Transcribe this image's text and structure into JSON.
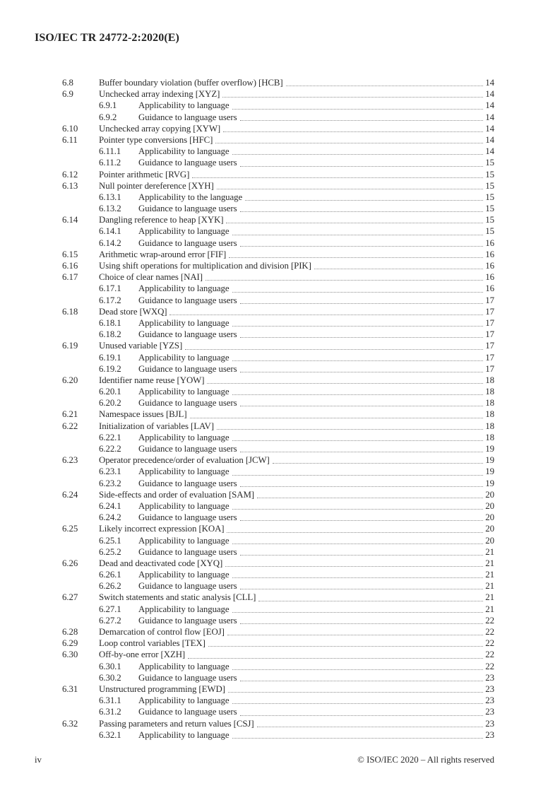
{
  "header": {
    "doc_id": "ISO/IEC TR 24772-2:2020(E)"
  },
  "toc": {
    "entries": [
      {
        "num": "6.8",
        "title": "Buffer boundary violation (buffer overflow) [HCB]",
        "page": "14",
        "level": 2
      },
      {
        "num": "6.9",
        "title": "Unchecked array indexing [XYZ]",
        "page": "14",
        "level": 2
      },
      {
        "num": "6.9.1",
        "title": "Applicability to language",
        "page": "14",
        "level": 3
      },
      {
        "num": "6.9.2",
        "title": "Guidance to language users",
        "page": "14",
        "level": 3
      },
      {
        "num": "6.10",
        "title": "Unchecked array copying [XYW]",
        "page": "14",
        "level": 2
      },
      {
        "num": "6.11",
        "title": "Pointer type conversions [HFC]",
        "page": "14",
        "level": 2
      },
      {
        "num": "6.11.1",
        "title": "Applicability to language",
        "page": "14",
        "level": 3
      },
      {
        "num": "6.11.2",
        "title": "Guidance to language users",
        "page": "15",
        "level": 3
      },
      {
        "num": "6.12",
        "title": "Pointer arithmetic [RVG]",
        "page": "15",
        "level": 2
      },
      {
        "num": "6.13",
        "title": "Null pointer dereference [XYH]",
        "page": "15",
        "level": 2
      },
      {
        "num": "6.13.1",
        "title": "Applicability to the language",
        "page": "15",
        "level": 3
      },
      {
        "num": "6.13.2",
        "title": "Guidance to language users",
        "page": "15",
        "level": 3
      },
      {
        "num": "6.14",
        "title": "Dangling reference to heap [XYK]",
        "page": "15",
        "level": 2
      },
      {
        "num": "6.14.1",
        "title": "Applicability to language",
        "page": "15",
        "level": 3
      },
      {
        "num": "6.14.2",
        "title": "Guidance to language users",
        "page": "16",
        "level": 3
      },
      {
        "num": "6.15",
        "title": "Arithmetic wrap-around error [FIF]",
        "page": "16",
        "level": 2
      },
      {
        "num": "6.16",
        "title": "Using shift operations for multiplication and division [PIK]",
        "page": "16",
        "level": 2
      },
      {
        "num": "6.17",
        "title": "Choice of clear names [NAI]",
        "page": "16",
        "level": 2
      },
      {
        "num": "6.17.1",
        "title": "Applicability to language",
        "page": "16",
        "level": 3
      },
      {
        "num": "6.17.2",
        "title": "Guidance to language users",
        "page": "17",
        "level": 3
      },
      {
        "num": "6.18",
        "title": "Dead store [WXQ]",
        "page": "17",
        "level": 2
      },
      {
        "num": "6.18.1",
        "title": "Applicability to language",
        "page": "17",
        "level": 3
      },
      {
        "num": "6.18.2",
        "title": "Guidance to language users",
        "page": "17",
        "level": 3
      },
      {
        "num": "6.19",
        "title": "Unused variable [YZS]",
        "page": "17",
        "level": 2
      },
      {
        "num": "6.19.1",
        "title": "Applicability to language",
        "page": "17",
        "level": 3
      },
      {
        "num": "6.19.2",
        "title": "Guidance to language users",
        "page": "17",
        "level": 3
      },
      {
        "num": "6.20",
        "title": "Identifier name reuse [YOW]",
        "page": "18",
        "level": 2
      },
      {
        "num": "6.20.1",
        "title": "Applicability to language",
        "page": "18",
        "level": 3
      },
      {
        "num": "6.20.2",
        "title": "Guidance to language users",
        "page": "18",
        "level": 3
      },
      {
        "num": "6.21",
        "title": "Namespace issues [BJL]",
        "page": "18",
        "level": 2
      },
      {
        "num": "6.22",
        "title": "Initialization of variables [LAV]",
        "page": "18",
        "level": 2
      },
      {
        "num": "6.22.1",
        "title": "Applicability to language",
        "page": "18",
        "level": 3
      },
      {
        "num": "6.22.2",
        "title": "Guidance to language users",
        "page": "19",
        "level": 3
      },
      {
        "num": "6.23",
        "title": "Operator precedence/order of evaluation [JCW]",
        "page": "19",
        "level": 2
      },
      {
        "num": "6.23.1",
        "title": "Applicability to language",
        "page": "19",
        "level": 3
      },
      {
        "num": "6.23.2",
        "title": "Guidance to language users",
        "page": "19",
        "level": 3
      },
      {
        "num": "6.24",
        "title": "Side-effects and order of evaluation [SAM]",
        "page": "20",
        "level": 2
      },
      {
        "num": "6.24.1",
        "title": "Applicability to language",
        "page": "20",
        "level": 3
      },
      {
        "num": "6.24.2",
        "title": "Guidance to language users",
        "page": "20",
        "level": 3
      },
      {
        "num": "6.25",
        "title": "Likely incorrect expression [KOA]",
        "page": "20",
        "level": 2
      },
      {
        "num": "6.25.1",
        "title": "Applicability to language",
        "page": "20",
        "level": 3
      },
      {
        "num": "6.25.2",
        "title": "Guidance to language users",
        "page": "21",
        "level": 3
      },
      {
        "num": "6.26",
        "title": "Dead and deactivated code [XYQ]",
        "page": "21",
        "level": 2
      },
      {
        "num": "6.26.1",
        "title": "Applicability to language",
        "page": "21",
        "level": 3
      },
      {
        "num": "6.26.2",
        "title": "Guidance to language users",
        "page": "21",
        "level": 3
      },
      {
        "num": "6.27",
        "title": "Switch statements and static analysis [CLL]",
        "page": "21",
        "level": 2
      },
      {
        "num": "6.27.1",
        "title": "Applicability to language",
        "page": "21",
        "level": 3
      },
      {
        "num": "6.27.2",
        "title": "Guidance to language users",
        "page": "22",
        "level": 3
      },
      {
        "num": "6.28",
        "title": "Demarcation of control flow [EOJ]",
        "page": "22",
        "level": 2
      },
      {
        "num": "6.29",
        "title": "Loop control variables [TEX]",
        "page": "22",
        "level": 2
      },
      {
        "num": "6.30",
        "title": "Off-by-one error [XZH]",
        "page": "22",
        "level": 2
      },
      {
        "num": "6.30.1",
        "title": "Applicability to language",
        "page": "22",
        "level": 3
      },
      {
        "num": "6.30.2",
        "title": "Guidance to language users",
        "page": "23",
        "level": 3
      },
      {
        "num": "6.31",
        "title": "Unstructured programming [EWD]",
        "page": "23",
        "level": 2
      },
      {
        "num": "6.31.1",
        "title": "Applicability to language",
        "page": "23",
        "level": 3
      },
      {
        "num": "6.31.2",
        "title": "Guidance to language users",
        "page": "23",
        "level": 3
      },
      {
        "num": "6.32",
        "title": "Passing parameters and return values [CSJ]",
        "page": "23",
        "level": 2
      },
      {
        "num": "6.32.1",
        "title": "Applicability to language",
        "page": "23",
        "level": 3
      }
    ]
  },
  "footer": {
    "page_number": "iv",
    "copyright": "© ISO/IEC 2020 – All rights reserved"
  }
}
